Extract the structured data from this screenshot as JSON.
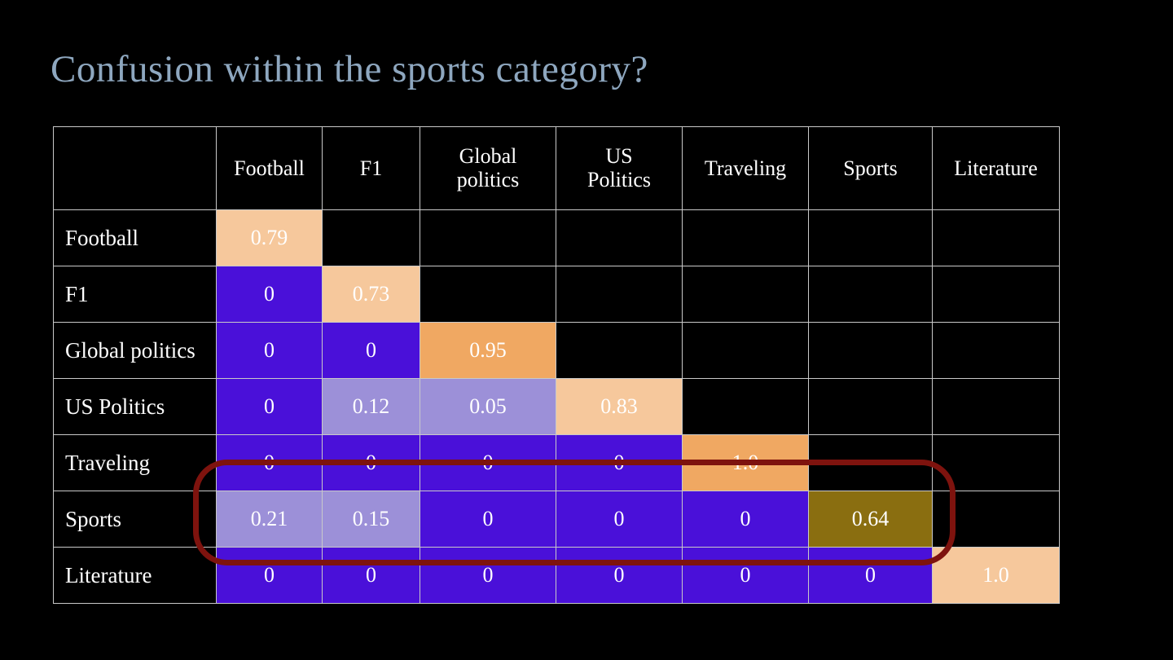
{
  "title": "Confusion within the sports category?",
  "colors": {
    "background": "#000000",
    "title": "#8ea7bf",
    "grid_border": "#c9c9c9",
    "cell_text": "#ffffff",
    "purple": "#4a10d9",
    "lavender": "#9c90d8",
    "peach": "#f6c89c",
    "orange": "#f0a862",
    "gold": "#8a6e10",
    "highlight_red": "#7e130e"
  },
  "chart_data": {
    "type": "heatmap",
    "title": "Confusion within the sports category?",
    "columns": [
      "Football",
      "F1",
      "Global politics",
      "US Politics",
      "Traveling",
      "Sports",
      "Literature"
    ],
    "rows": [
      "Football",
      "F1",
      "Global politics",
      "US Politics",
      "Traveling",
      "Sports",
      "Literature"
    ],
    "cells": [
      [
        {
          "v": "0.79",
          "c": "peach"
        },
        null,
        null,
        null,
        null,
        null,
        null
      ],
      [
        {
          "v": "0",
          "c": "purple"
        },
        {
          "v": "0.73",
          "c": "peach"
        },
        null,
        null,
        null,
        null,
        null
      ],
      [
        {
          "v": "0",
          "c": "purple"
        },
        {
          "v": "0",
          "c": "purple"
        },
        {
          "v": "0.95",
          "c": "orange"
        },
        null,
        null,
        null,
        null
      ],
      [
        {
          "v": "0",
          "c": "purple"
        },
        {
          "v": "0.12",
          "c": "lavender"
        },
        {
          "v": "0.05",
          "c": "lavender"
        },
        {
          "v": "0.83",
          "c": "peach"
        },
        null,
        null,
        null
      ],
      [
        {
          "v": "0",
          "c": "purple"
        },
        {
          "v": "0",
          "c": "purple"
        },
        {
          "v": "0",
          "c": "purple"
        },
        {
          "v": "0",
          "c": "purple"
        },
        {
          "v": "1.0",
          "c": "orange"
        },
        null,
        null
      ],
      [
        {
          "v": "0.21",
          "c": "lavender"
        },
        {
          "v": "0.15",
          "c": "lavender"
        },
        {
          "v": "0",
          "c": "purple"
        },
        {
          "v": "0",
          "c": "purple"
        },
        {
          "v": "0",
          "c": "purple"
        },
        {
          "v": "0.64",
          "c": "gold"
        },
        null
      ],
      [
        {
          "v": "0",
          "c": "purple"
        },
        {
          "v": "0",
          "c": "purple"
        },
        {
          "v": "0",
          "c": "purple"
        },
        {
          "v": "0",
          "c": "purple"
        },
        {
          "v": "0",
          "c": "purple"
        },
        {
          "v": "0",
          "c": "purple"
        },
        {
          "v": "1.0",
          "c": "peach"
        }
      ]
    ],
    "annotation": {
      "type": "highlight-rounded-rect",
      "target_row": "Sports",
      "color": "#7e130e"
    },
    "legend": "none",
    "grid": true
  }
}
